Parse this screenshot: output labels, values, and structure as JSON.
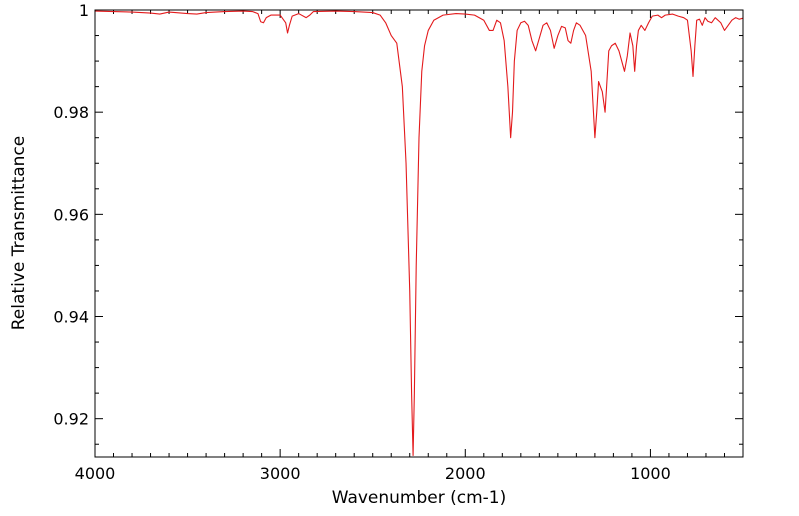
{
  "chart_data": {
    "type": "line",
    "title": "",
    "xlabel": "Wavenumber (cm-1)",
    "ylabel": "Relative Transmittance",
    "xlim": [
      4000,
      500
    ],
    "ylim": [
      0.9125,
      1.0
    ],
    "x_reversed": true,
    "grid": false,
    "legend": "none",
    "line_color": "#e31a1c",
    "x_ticks": [
      {
        "value": 4000,
        "label": "4000"
      },
      {
        "value": 3000,
        "label": "3000"
      },
      {
        "value": 2000,
        "label": "2000"
      },
      {
        "value": 1000,
        "label": "1000"
      }
    ],
    "y_ticks": [
      {
        "value": 1.0,
        "label": "1"
      },
      {
        "value": 0.98,
        "label": "0.98"
      },
      {
        "value": 0.96,
        "label": "0.96"
      },
      {
        "value": 0.94,
        "label": "0.94"
      },
      {
        "value": 0.92,
        "label": "0.92"
      }
    ],
    "series": [
      {
        "points": [
          [
            4000,
            0.9998
          ],
          [
            3800,
            0.9996
          ],
          [
            3700,
            0.9994
          ],
          [
            3650,
            0.9992
          ],
          [
            3600,
            0.9996
          ],
          [
            3500,
            0.9993
          ],
          [
            3450,
            0.9992
          ],
          [
            3400,
            0.9995
          ],
          [
            3300,
            0.9997
          ],
          [
            3200,
            0.9998
          ],
          [
            3150,
            0.9997
          ],
          [
            3120,
            0.9993
          ],
          [
            3105,
            0.9977
          ],
          [
            3090,
            0.9975
          ],
          [
            3075,
            0.9985
          ],
          [
            3050,
            0.999
          ],
          [
            3000,
            0.999
          ],
          [
            2970,
            0.9975
          ],
          [
            2960,
            0.9955
          ],
          [
            2950,
            0.997
          ],
          [
            2935,
            0.9988
          ],
          [
            2900,
            0.9993
          ],
          [
            2860,
            0.9985
          ],
          [
            2840,
            0.999
          ],
          [
            2820,
            0.9997
          ],
          [
            2700,
            0.9998
          ],
          [
            2600,
            0.9997
          ],
          [
            2500,
            0.9995
          ],
          [
            2460,
            0.999
          ],
          [
            2430,
            0.9975
          ],
          [
            2400,
            0.995
          ],
          [
            2370,
            0.9935
          ],
          [
            2340,
            0.985
          ],
          [
            2320,
            0.97
          ],
          [
            2300,
            0.945
          ],
          [
            2290,
            0.925
          ],
          [
            2282,
            0.9128
          ],
          [
            2275,
            0.925
          ],
          [
            2265,
            0.95
          ],
          [
            2250,
            0.975
          ],
          [
            2235,
            0.988
          ],
          [
            2220,
            0.993
          ],
          [
            2200,
            0.996
          ],
          [
            2170,
            0.998
          ],
          [
            2120,
            0.999
          ],
          [
            2050,
            0.9993
          ],
          [
            2000,
            0.9992
          ],
          [
            1950,
            0.999
          ],
          [
            1900,
            0.998
          ],
          [
            1870,
            0.996
          ],
          [
            1850,
            0.996
          ],
          [
            1830,
            0.998
          ],
          [
            1810,
            0.9975
          ],
          [
            1790,
            0.994
          ],
          [
            1770,
            0.985
          ],
          [
            1755,
            0.975
          ],
          [
            1745,
            0.98
          ],
          [
            1735,
            0.99
          ],
          [
            1720,
            0.996
          ],
          [
            1700,
            0.9975
          ],
          [
            1680,
            0.9978
          ],
          [
            1660,
            0.997
          ],
          [
            1640,
            0.994
          ],
          [
            1620,
            0.992
          ],
          [
            1600,
            0.9945
          ],
          [
            1580,
            0.997
          ],
          [
            1560,
            0.9975
          ],
          [
            1540,
            0.996
          ],
          [
            1520,
            0.9925
          ],
          [
            1500,
            0.995
          ],
          [
            1480,
            0.9968
          ],
          [
            1460,
            0.9965
          ],
          [
            1445,
            0.994
          ],
          [
            1430,
            0.9935
          ],
          [
            1415,
            0.996
          ],
          [
            1400,
            0.9975
          ],
          [
            1380,
            0.997
          ],
          [
            1350,
            0.995
          ],
          [
            1320,
            0.988
          ],
          [
            1300,
            0.975
          ],
          [
            1290,
            0.98
          ],
          [
            1280,
            0.986
          ],
          [
            1270,
            0.985
          ],
          [
            1260,
            0.984
          ],
          [
            1245,
            0.98
          ],
          [
            1235,
            0.986
          ],
          [
            1225,
            0.992
          ],
          [
            1210,
            0.993
          ],
          [
            1190,
            0.9935
          ],
          [
            1170,
            0.992
          ],
          [
            1140,
            0.988
          ],
          [
            1125,
            0.991
          ],
          [
            1110,
            0.9955
          ],
          [
            1095,
            0.993
          ],
          [
            1085,
            0.988
          ],
          [
            1075,
            0.993
          ],
          [
            1065,
            0.996
          ],
          [
            1050,
            0.997
          ],
          [
            1030,
            0.996
          ],
          [
            1010,
            0.9975
          ],
          [
            990,
            0.9988
          ],
          [
            960,
            0.999
          ],
          [
            940,
            0.9985
          ],
          [
            920,
            0.999
          ],
          [
            880,
            0.9992
          ],
          [
            850,
            0.9988
          ],
          [
            820,
            0.9985
          ],
          [
            800,
            0.998
          ],
          [
            790,
            0.995
          ],
          [
            780,
            0.992
          ],
          [
            770,
            0.987
          ],
          [
            760,
            0.993
          ],
          [
            750,
            0.998
          ],
          [
            735,
            0.9982
          ],
          [
            720,
            0.997
          ],
          [
            705,
            0.9985
          ],
          [
            690,
            0.9978
          ],
          [
            670,
            0.9975
          ],
          [
            650,
            0.9985
          ],
          [
            620,
            0.9975
          ],
          [
            600,
            0.996
          ],
          [
            580,
            0.997
          ],
          [
            560,
            0.998
          ],
          [
            540,
            0.9985
          ],
          [
            520,
            0.9982
          ],
          [
            500,
            0.9984
          ]
        ]
      }
    ]
  }
}
